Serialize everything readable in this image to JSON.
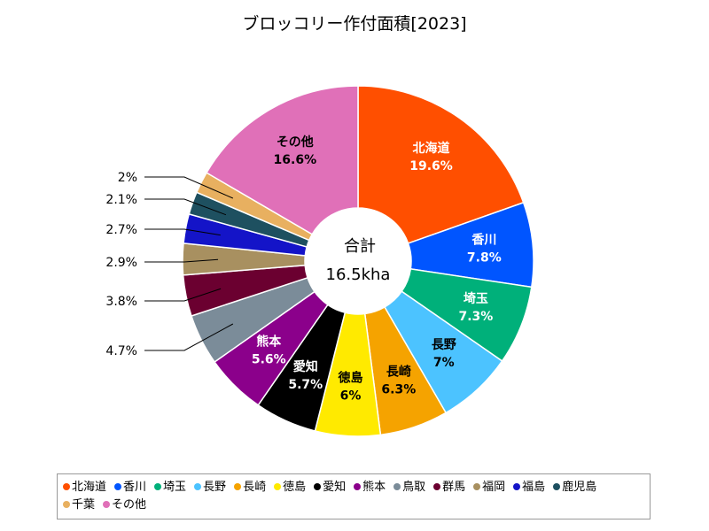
{
  "chart_data": {
    "type": "pie",
    "variant": "donut",
    "title": "ブロッコリー作付面積[2023]",
    "center_label": "合計",
    "center_value": "16.5kha",
    "slices": [
      {
        "name": "北海道",
        "value": 19.6,
        "label": "19.6%",
        "color": "#ff4f00",
        "text_color": "#ffffff",
        "show_name": true
      },
      {
        "name": "香川",
        "value": 7.8,
        "label": "7.8%",
        "color": "#0055ff",
        "text_color": "#ffffff",
        "show_name": true
      },
      {
        "name": "埼玉",
        "value": 7.3,
        "label": "7.3%",
        "color": "#00b07a",
        "text_color": "#ffffff",
        "show_name": true
      },
      {
        "name": "長野",
        "value": 7,
        "label": "7%",
        "color": "#4cc3ff",
        "text_color": "#000000",
        "show_name": true
      },
      {
        "name": "長崎",
        "value": 6.3,
        "label": "6.3%",
        "color": "#f5a300",
        "text_color": "#000000",
        "show_name": true
      },
      {
        "name": "徳島",
        "value": 6,
        "label": "6%",
        "color": "#ffea00",
        "text_color": "#000000",
        "show_name": true
      },
      {
        "name": "愛知",
        "value": 5.7,
        "label": "5.7%",
        "color": "#000000",
        "text_color": "#ffffff",
        "show_name": true
      },
      {
        "name": "熊本",
        "value": 5.6,
        "label": "5.6%",
        "color": "#8b008b",
        "text_color": "#ffffff",
        "show_name": true
      },
      {
        "name": "鳥取",
        "value": 4.7,
        "label": "4.7%",
        "color": "#7b8c99",
        "text_color": "#000000",
        "show_name": false
      },
      {
        "name": "群馬",
        "value": 3.8,
        "label": "3.8%",
        "color": "#6b0030",
        "text_color": "#000000",
        "show_name": false
      },
      {
        "name": "福岡",
        "value": 2.9,
        "label": "2.9%",
        "color": "#a89060",
        "text_color": "#000000",
        "show_name": false
      },
      {
        "name": "福島",
        "value": 2.7,
        "label": "2.7%",
        "color": "#1414c8",
        "text_color": "#000000",
        "show_name": false
      },
      {
        "name": "鹿児島",
        "value": 2.1,
        "label": "2.1%",
        "color": "#1e5060",
        "text_color": "#000000",
        "show_name": false
      },
      {
        "name": "千葉",
        "value": 2,
        "label": "2%",
        "color": "#e8b060",
        "text_color": "#000000",
        "show_name": false
      },
      {
        "name": "その他",
        "value": 16.6,
        "label": "16.6%",
        "color": "#e070b8",
        "text_color": "#000000",
        "show_name": true
      }
    ],
    "legend_position": "bottom"
  }
}
